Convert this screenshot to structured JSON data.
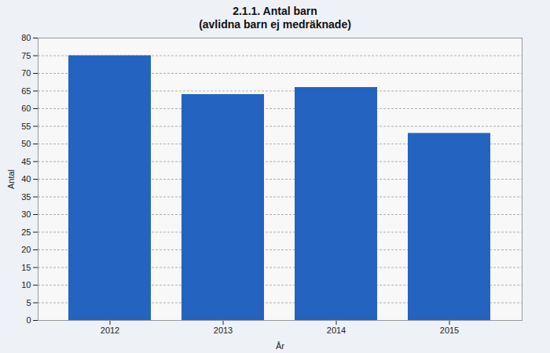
{
  "chart_data": {
    "type": "bar",
    "title": "2.1.1. Antal barn",
    "subtitle": "(avlidna barn ej medräknade)",
    "categories": [
      "2012",
      "2013",
      "2014",
      "2015"
    ],
    "values": [
      75,
      64,
      66,
      53
    ],
    "color": "#2563c0",
    "x_label": "År",
    "y_label": "Antal",
    "ylim": [
      0,
      80
    ],
    "yticks": [
      0,
      5,
      10,
      15,
      20,
      25,
      30,
      35,
      40,
      45,
      50,
      55,
      60,
      65,
      70,
      75,
      80
    ],
    "grid": true
  }
}
